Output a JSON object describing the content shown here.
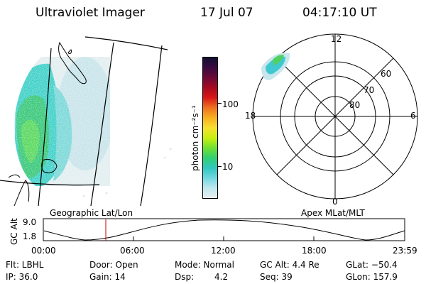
{
  "header": {
    "instrument": "Ultraviolet Imager",
    "date": "17 Jul 07",
    "time": "04:17:10 UT"
  },
  "colorbar": {
    "unit_label": "photon cm⁻²s⁻¹",
    "ticks": [
      "100",
      "10"
    ],
    "colors": [
      "#101030",
      "#3a0a40",
      "#6a0a38",
      "#a80a20",
      "#d81818",
      "#f07020",
      "#f8b020",
      "#f8e030",
      "#c8f010",
      "#70e030",
      "#30d070",
      "#30c8c0",
      "#70d8e0",
      "#c0e8f0",
      "#e8f0f0"
    ]
  },
  "geo_map": {
    "label": "Geographic Lat/Lon"
  },
  "polar_plot": {
    "label": "Apex  MLat/MLT",
    "mlt_labels": [
      "12",
      "18",
      "6",
      "0"
    ],
    "lat_labels": [
      "60",
      "70",
      "80"
    ]
  },
  "orbit_panel": {
    "ylabel": "GC Alt",
    "ytick_top": "9.0",
    "ytick_bottom": "1.8",
    "xticks": [
      "00:00",
      "06:00",
      "12:00",
      "18:00",
      "23:59"
    ]
  },
  "status": {
    "filter": "Flt: LBHL",
    "ip": "IP: 36.0",
    "door": "Door: Open",
    "gain": "Gain: 14",
    "mode": "Mode: Normal",
    "dsp_label": "Dsp:",
    "dsp_value": "4.2",
    "gc_alt": "GC Alt: 4.4 Re",
    "seq": "Seq: 39",
    "glat": "GLat: −50.4",
    "glon": "GLon: 157.9"
  }
}
